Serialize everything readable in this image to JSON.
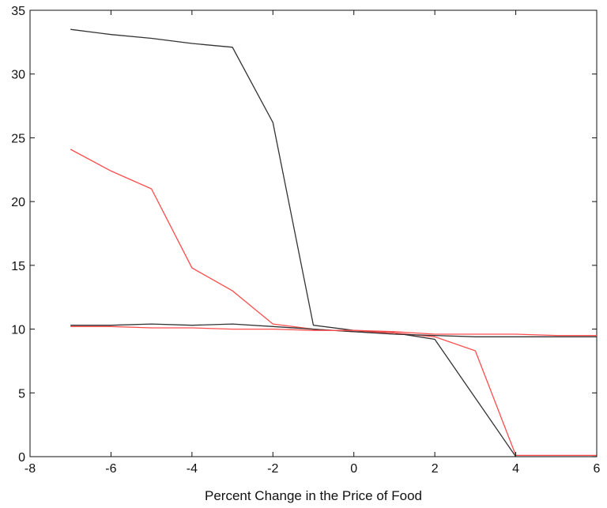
{
  "chart_data": {
    "type": "line",
    "title": "",
    "xlabel": "Percent Change in the Price of Food",
    "ylabel": "",
    "xlim": [
      -8,
      6
    ],
    "ylim": [
      0,
      35
    ],
    "xticks": [
      -8,
      -6,
      -4,
      -2,
      0,
      2,
      4,
      6
    ],
    "yticks": [
      0,
      5,
      10,
      15,
      20,
      25,
      30,
      35
    ],
    "grid": false,
    "legend": "none",
    "series": [
      {
        "color": "#333333",
        "x": [
          -7,
          -6,
          -5,
          -4,
          -3,
          -2,
          -1,
          0,
          1,
          2,
          3,
          4,
          5,
          6
        ],
        "y": [
          33.5,
          33.1,
          32.8,
          32.4,
          32.1,
          26.2,
          10.3,
          9.9,
          9.7,
          9.2,
          4.6,
          0.0,
          0.0,
          0.0
        ]
      },
      {
        "color": "#ff4d4d",
        "x": [
          -7,
          -6,
          -5,
          -4,
          -3,
          -2,
          -1,
          0,
          1,
          2,
          3,
          4,
          5,
          6
        ],
        "y": [
          24.1,
          22.4,
          21.0,
          14.8,
          13.0,
          10.4,
          10.0,
          9.8,
          9.7,
          9.4,
          8.3,
          0.1,
          0.1,
          0.1
        ]
      },
      {
        "color": "#333333",
        "x": [
          -7,
          -6,
          -5,
          -4,
          -3,
          -2,
          -1,
          0,
          1,
          2,
          3,
          4,
          5,
          6
        ],
        "y": [
          10.3,
          10.3,
          10.4,
          10.3,
          10.4,
          10.2,
          10.0,
          9.8,
          9.6,
          9.5,
          9.4,
          9.4,
          9.4,
          9.4
        ]
      },
      {
        "color": "#ff4d4d",
        "x": [
          -7,
          -6,
          -5,
          -4,
          -3,
          -2,
          -1,
          0,
          1,
          2,
          3,
          4,
          5,
          6
        ],
        "y": [
          10.2,
          10.2,
          10.1,
          10.1,
          10.0,
          10.0,
          9.9,
          9.9,
          9.8,
          9.6,
          9.6,
          9.6,
          9.5,
          9.5
        ]
      }
    ]
  }
}
